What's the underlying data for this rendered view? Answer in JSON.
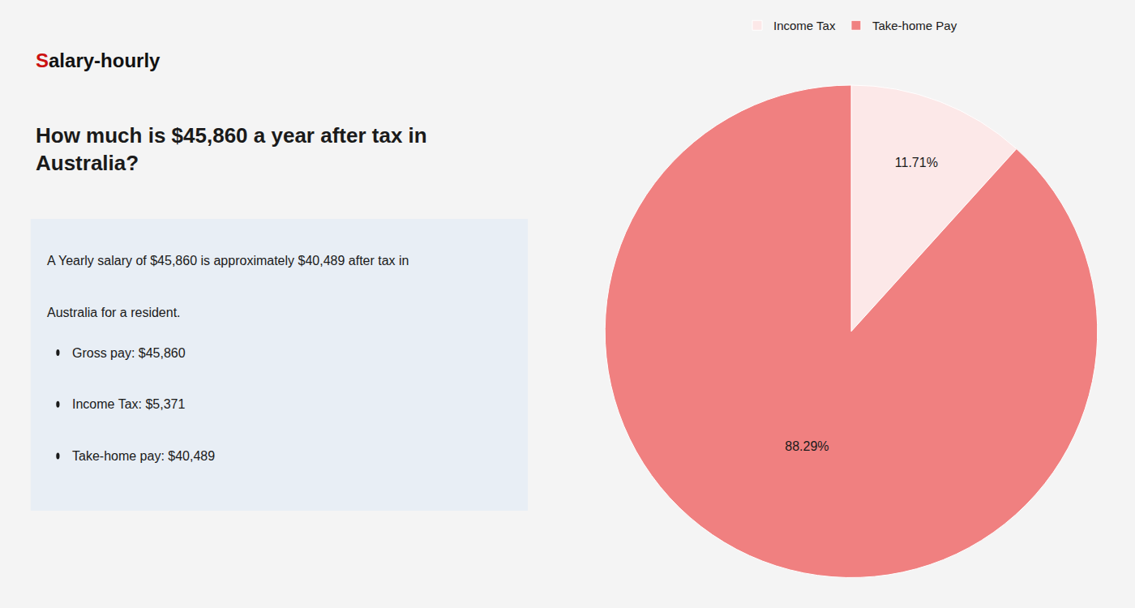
{
  "chart_data": {
    "type": "pie",
    "title": "How much is $45,860 a year after tax in\nAustralia?",
    "annotations": [
      "Salary-hourly",
      "A Yearly salary of $45,860 is approximately $40,489 after tax in",
      "Australia for a resident.",
      "Gross pay: $45,860",
      "Income Tax: $5,371",
      "Take-home pay: $40,489"
    ],
    "categories": [
      "Income Tax",
      "Take-home Pay"
    ],
    "values": [
      11.71,
      88.29
    ],
    "value_labels": [
      "11.71%",
      "88.29%"
    ],
    "colors": [
      "#fce8e8",
      "#f08080"
    ],
    "data_labels": true,
    "legend": "top"
  }
}
